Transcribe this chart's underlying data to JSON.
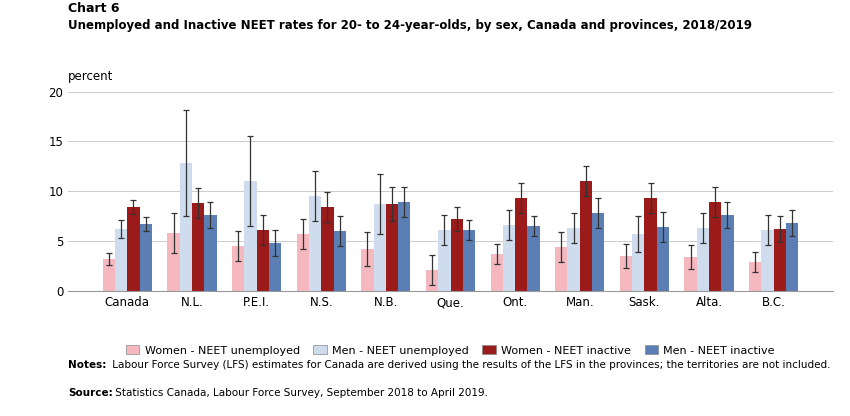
{
  "title_line1": "Chart 6",
  "title_line2": "Unemployed and Inactive NEET rates for 20- to 24-year-olds, by sex, Canada and provinces, 2018/2019",
  "ylabel": "percent",
  "ylim": [
    0,
    20
  ],
  "yticks": [
    0,
    5,
    10,
    15,
    20
  ],
  "provinces": [
    "Canada",
    "N.L.",
    "P.E.I.",
    "N.S.",
    "N.B.",
    "Que.",
    "Ont.",
    "Man.",
    "Sask.",
    "Alta.",
    "B.C."
  ],
  "women_unemployed": [
    3.2,
    5.8,
    4.5,
    5.7,
    4.2,
    2.1,
    3.7,
    4.4,
    3.5,
    3.4,
    2.9
  ],
  "men_unemployed": [
    6.2,
    12.8,
    11.0,
    9.5,
    8.7,
    6.1,
    6.6,
    6.3,
    5.7,
    6.3,
    6.1
  ],
  "women_inactive": [
    8.4,
    8.8,
    6.1,
    8.4,
    8.7,
    7.2,
    9.3,
    11.0,
    9.3,
    8.9,
    6.2
  ],
  "men_inactive": [
    6.7,
    7.6,
    4.8,
    6.0,
    8.9,
    6.1,
    6.5,
    7.8,
    6.4,
    7.6,
    6.8
  ],
  "women_unemployed_err": [
    0.6,
    2.0,
    1.5,
    1.5,
    1.7,
    1.5,
    1.0,
    1.5,
    1.2,
    1.2,
    1.0
  ],
  "men_unemployed_err": [
    0.9,
    5.3,
    4.5,
    2.5,
    3.0,
    1.5,
    1.5,
    1.5,
    1.8,
    1.5,
    1.5
  ],
  "women_inactive_err": [
    0.7,
    1.5,
    1.5,
    1.5,
    1.7,
    1.2,
    1.5,
    1.5,
    1.5,
    1.5,
    1.3
  ],
  "men_inactive_err": [
    0.7,
    1.3,
    1.3,
    1.5,
    1.5,
    1.0,
    1.0,
    1.5,
    1.5,
    1.3,
    1.3
  ],
  "color_women_unemployed": "#f4b8be",
  "color_men_unemployed": "#cfdcee",
  "color_women_inactive": "#9b1a1a",
  "color_men_inactive": "#5b7fb5",
  "notes_bold": "Notes:",
  "notes_rest": " Labour Force Survey (LFS) estimates for Canada are derived using the results of the LFS in the provinces; the territories are not included.",
  "source_bold": "Source:",
  "source_rest": " Statistics Canada, Labour Force Survey, September 2018 to April 2019."
}
